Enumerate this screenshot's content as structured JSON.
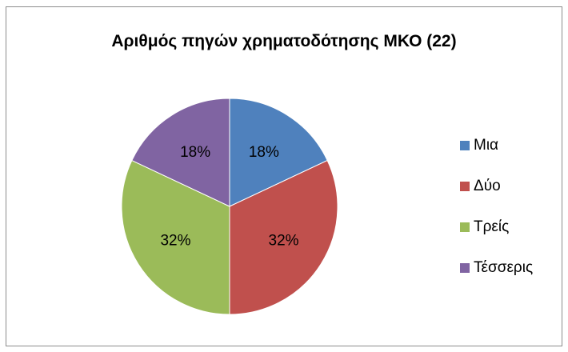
{
  "chart_data": {
    "type": "pie",
    "title": "Αριθμός πηγών χρηματοδότησης ΜΚΟ (22)",
    "categories": [
      "Μια",
      "Δύο",
      "Τρείς",
      "Τέσσερις"
    ],
    "values": [
      18,
      32,
      32,
      18
    ],
    "data_labels": [
      "18%",
      "32%",
      "32%",
      "18%"
    ],
    "colors": [
      "#4f81bd",
      "#c0504d",
      "#9bbb59",
      "#8064a2"
    ],
    "legend_position": "right"
  }
}
